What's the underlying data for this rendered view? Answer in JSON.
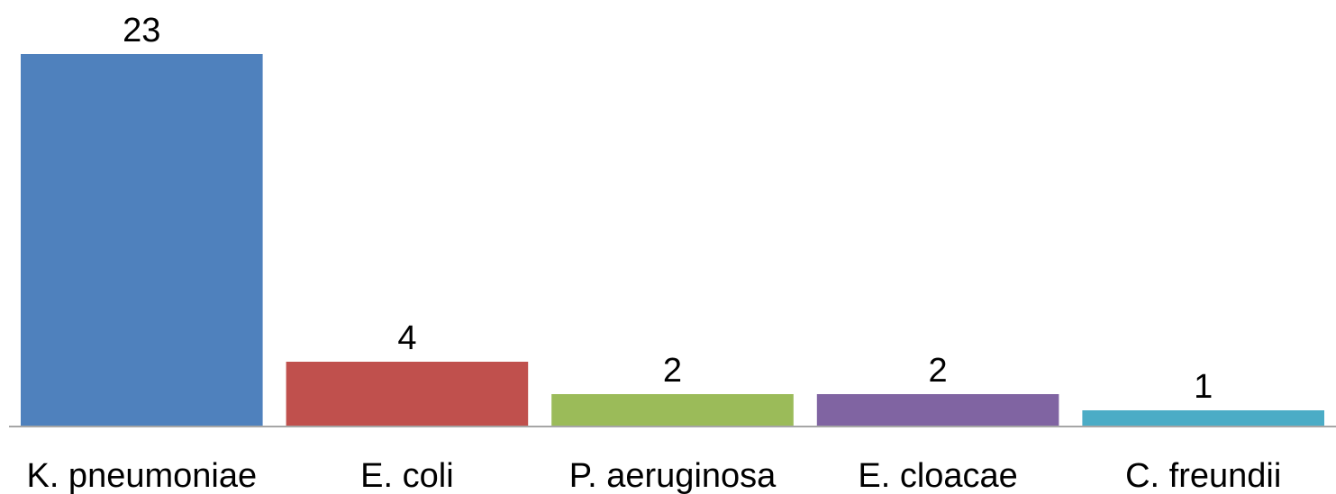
{
  "chart_data": {
    "type": "bar",
    "categories": [
      "K. pneumoniae",
      "E. coli",
      "P. aeruginosa",
      "E. cloacae",
      "C. freundii"
    ],
    "values": [
      23,
      4,
      2,
      2,
      1
    ],
    "colors": [
      "#4F81BD",
      "#C0504D",
      "#9BBB59",
      "#8064A2",
      "#4BACC6"
    ],
    "ylim": [
      0,
      23
    ],
    "grid": false,
    "legend": "none",
    "data_labels": true
  }
}
